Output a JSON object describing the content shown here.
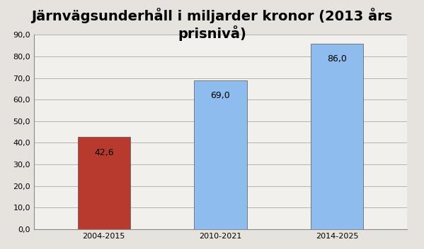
{
  "chart_data": {
    "type": "bar",
    "title": "Järnvägsunderhåll i miljarder kronor (2013 års prisnivå)",
    "categories": [
      "2004-2015",
      "2010-2021",
      "2014-2025"
    ],
    "values": [
      42.6,
      69.0,
      86.0
    ],
    "value_labels": [
      "42,6",
      "69,0",
      "86,0"
    ],
    "colors": [
      "#b83a2e",
      "#8fbcee",
      "#8fbcee"
    ],
    "ylim": [
      0,
      90
    ],
    "yticks": [
      {
        "value": 0,
        "label": "0,0"
      },
      {
        "value": 10,
        "label": "10,0"
      },
      {
        "value": 20,
        "label": "20,0"
      },
      {
        "value": 30,
        "label": "30,0"
      },
      {
        "value": 40,
        "label": "40,0"
      },
      {
        "value": 50,
        "label": "50,0"
      },
      {
        "value": 60,
        "label": "60,0"
      },
      {
        "value": 70,
        "label": "70,0"
      },
      {
        "value": 80,
        "label": "80,0"
      },
      {
        "value": 90,
        "label": "90,0"
      }
    ],
    "grid": true,
    "data_labels": true
  }
}
